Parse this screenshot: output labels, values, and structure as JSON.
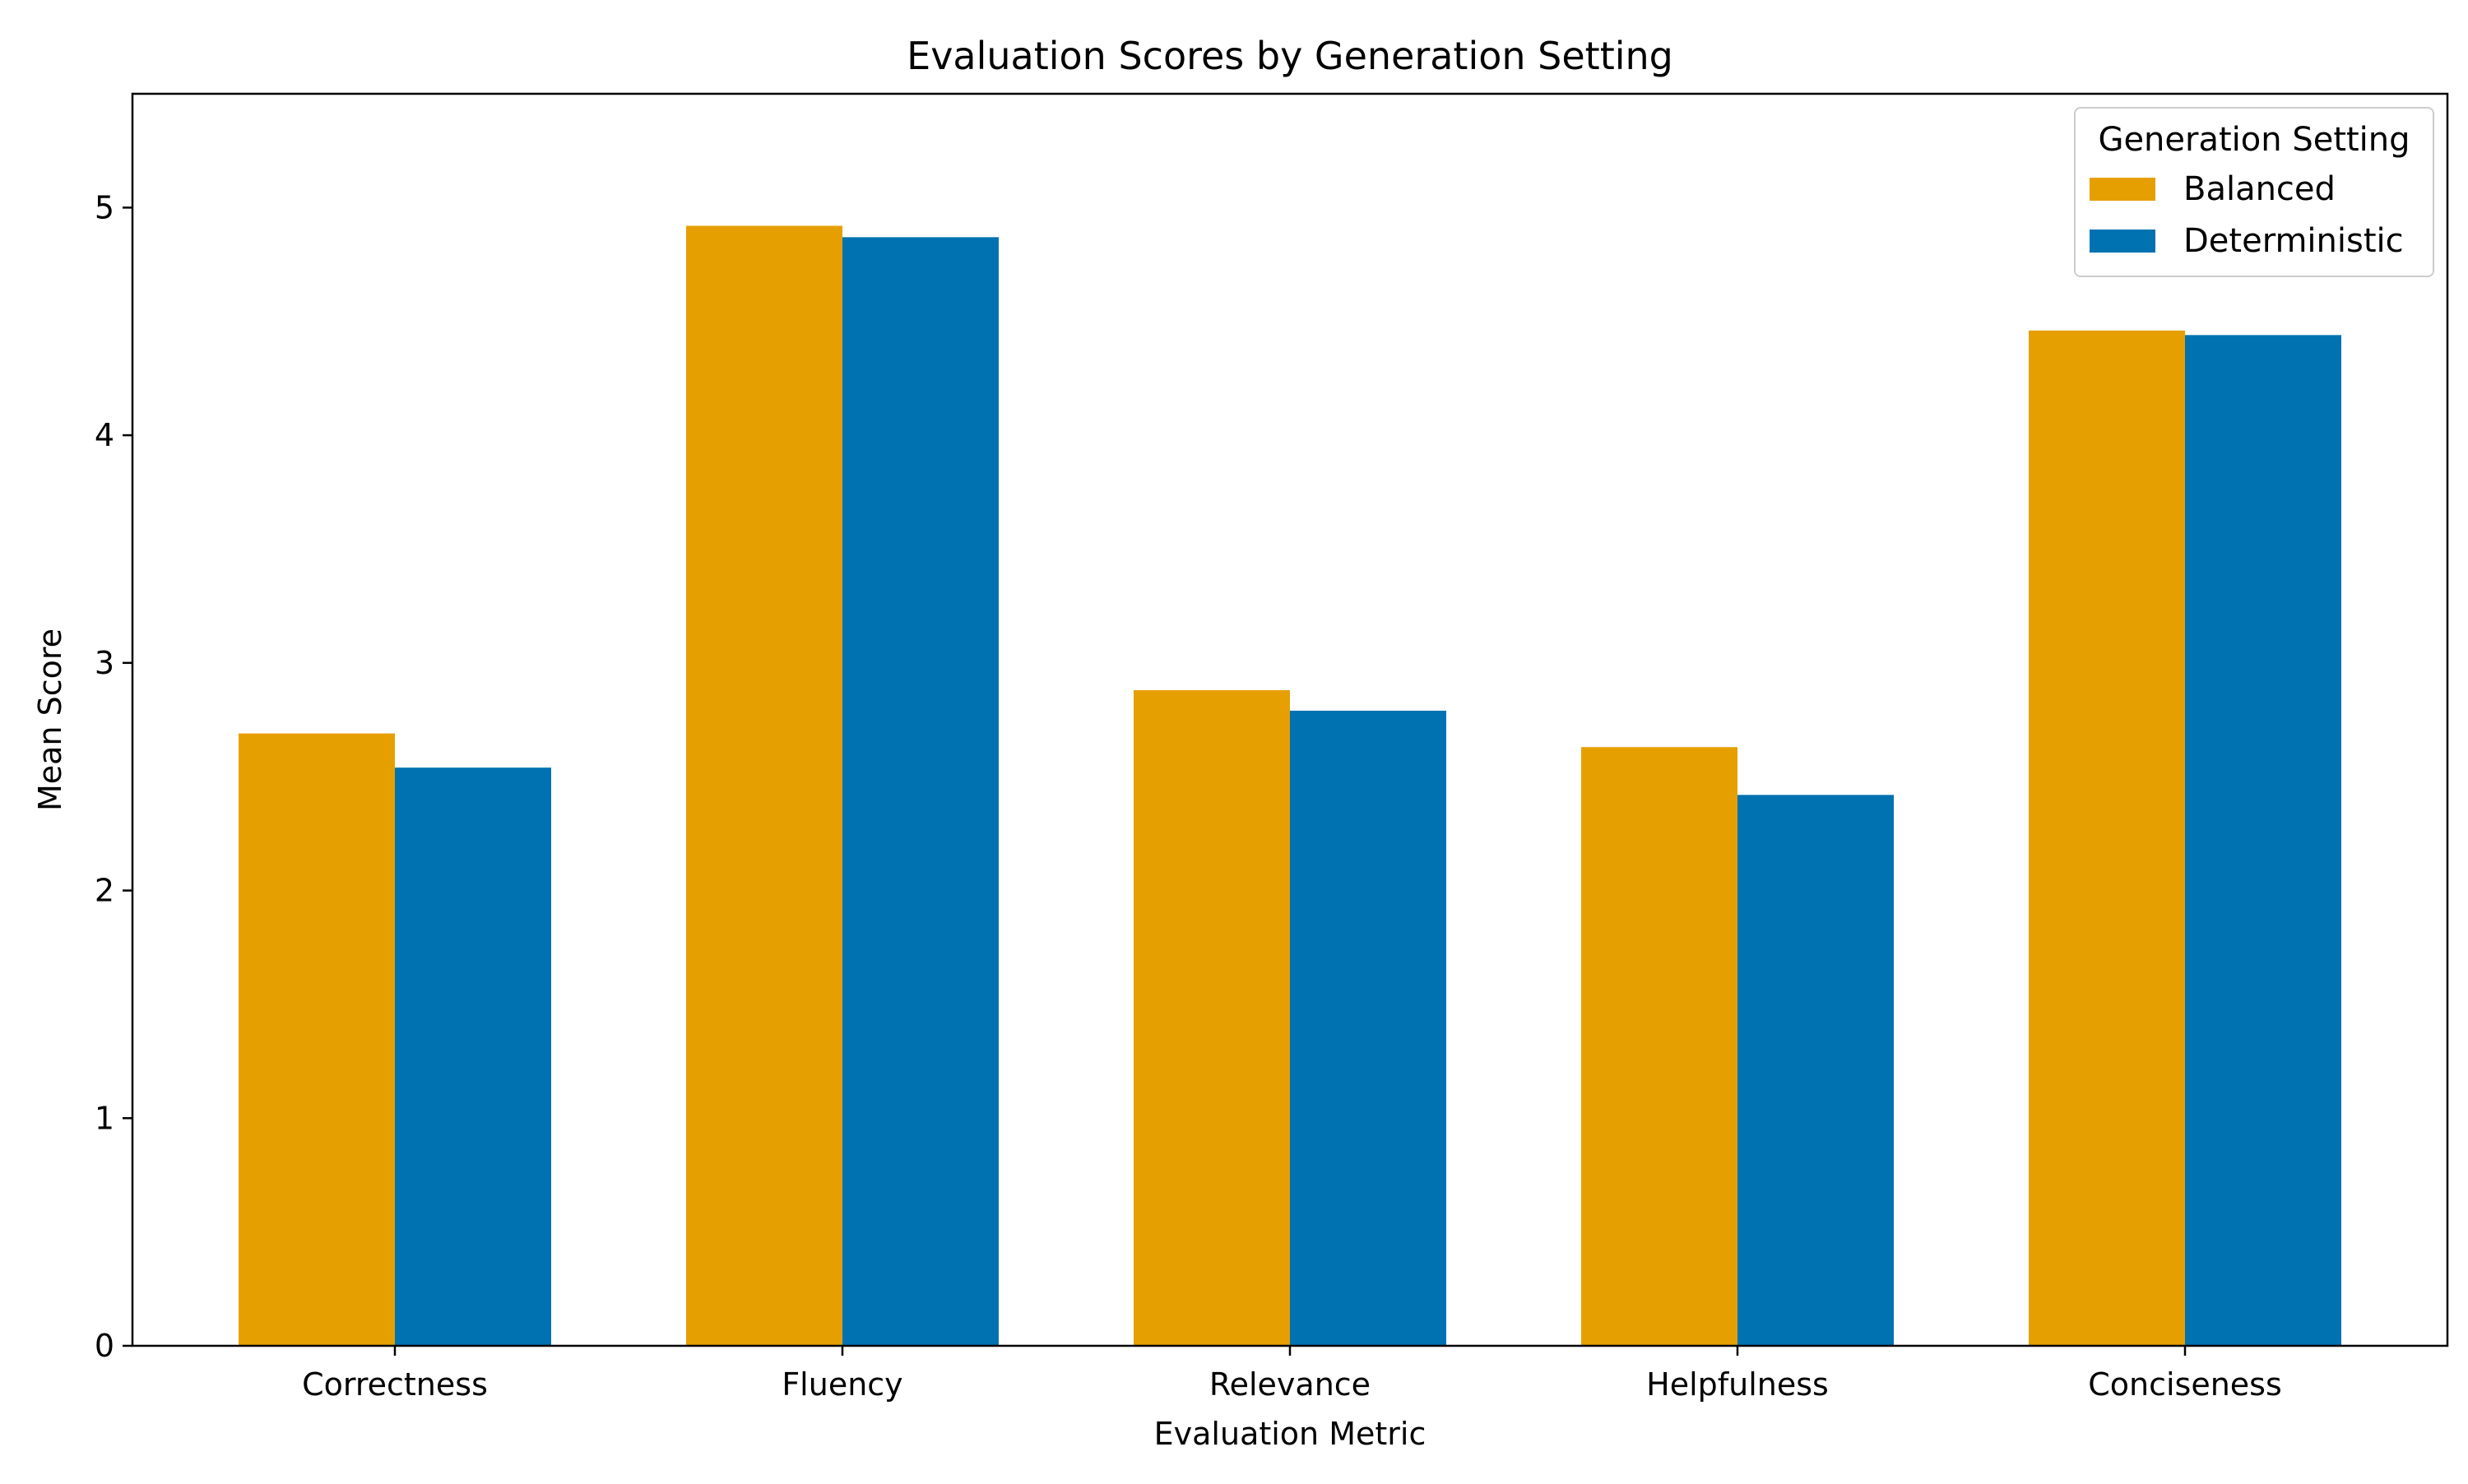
{
  "chart_data": {
    "type": "bar",
    "title": "Evaluation Scores by Generation Setting",
    "xlabel": "Evaluation Metric",
    "ylabel": "Mean Score",
    "categories": [
      "Correctness",
      "Fluency",
      "Relevance",
      "Helpfulness",
      "Conciseness"
    ],
    "series": [
      {
        "name": "Balanced",
        "color": "#E69F00",
        "values": [
          2.69,
          4.92,
          2.88,
          2.63,
          4.46
        ]
      },
      {
        "name": "Deterministic",
        "color": "#0072B2",
        "values": [
          2.54,
          4.87,
          2.79,
          2.42,
          4.44
        ]
      }
    ],
    "ylim": [
      0,
      5.5
    ],
    "yticks": [
      "0",
      "1",
      "2",
      "3",
      "4",
      "5"
    ],
    "grid": false,
    "legend": {
      "title": "Generation Setting",
      "placement": "top-right"
    }
  }
}
